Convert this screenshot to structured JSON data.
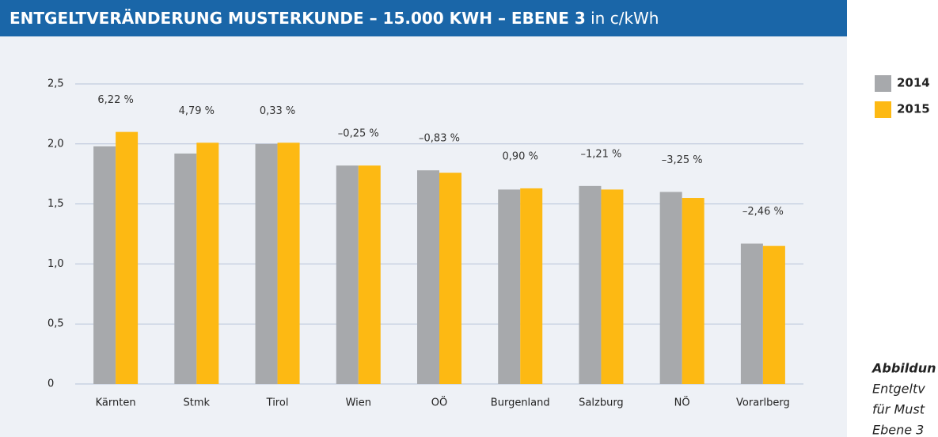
{
  "chart_data": {
    "type": "bar",
    "title": "ENTGELTVERÄNDERUNG MUSTERKUNDE – 15.000 KWH – EBENE 3",
    "subtitle": "in c/kWh",
    "categories": [
      "Kärnten",
      "Stmk",
      "Tirol",
      "Wien",
      "OÖ",
      "Burgenland",
      "Salzburg",
      "NÖ",
      "Vorarlberg"
    ],
    "series": [
      {
        "name": "2014",
        "color": "#a7a9ac",
        "values": [
          1.98,
          1.92,
          2.0,
          1.82,
          1.78,
          1.62,
          1.65,
          1.6,
          1.17
        ]
      },
      {
        "name": "2015",
        "color": "#fdb913",
        "values": [
          2.1,
          2.01,
          2.01,
          1.82,
          1.76,
          1.63,
          1.62,
          1.55,
          1.15
        ]
      }
    ],
    "annotations": [
      "6,22 %",
      "4,79 %",
      "0,33 %",
      "–0,25 %",
      "–0,83 %",
      "0,90 %",
      "–1,21 %",
      "–3,25 %",
      "–2,46 %"
    ],
    "ylim": [
      0,
      2.5
    ],
    "yticks": [
      0,
      {
        "value": 0.5,
        "label": "0,5"
      },
      {
        "value": 1,
        "label": "1,0"
      },
      {
        "value": 1.5,
        "label": "1,5"
      },
      {
        "value": 2,
        "label": "2,0"
      },
      {
        "value": 2.5,
        "label": "2,5"
      }
    ],
    "grid": true,
    "legend": "right",
    "caption": [
      "Abbildun",
      "Entgeltv",
      "für Must",
      "Ebene 3"
    ]
  }
}
